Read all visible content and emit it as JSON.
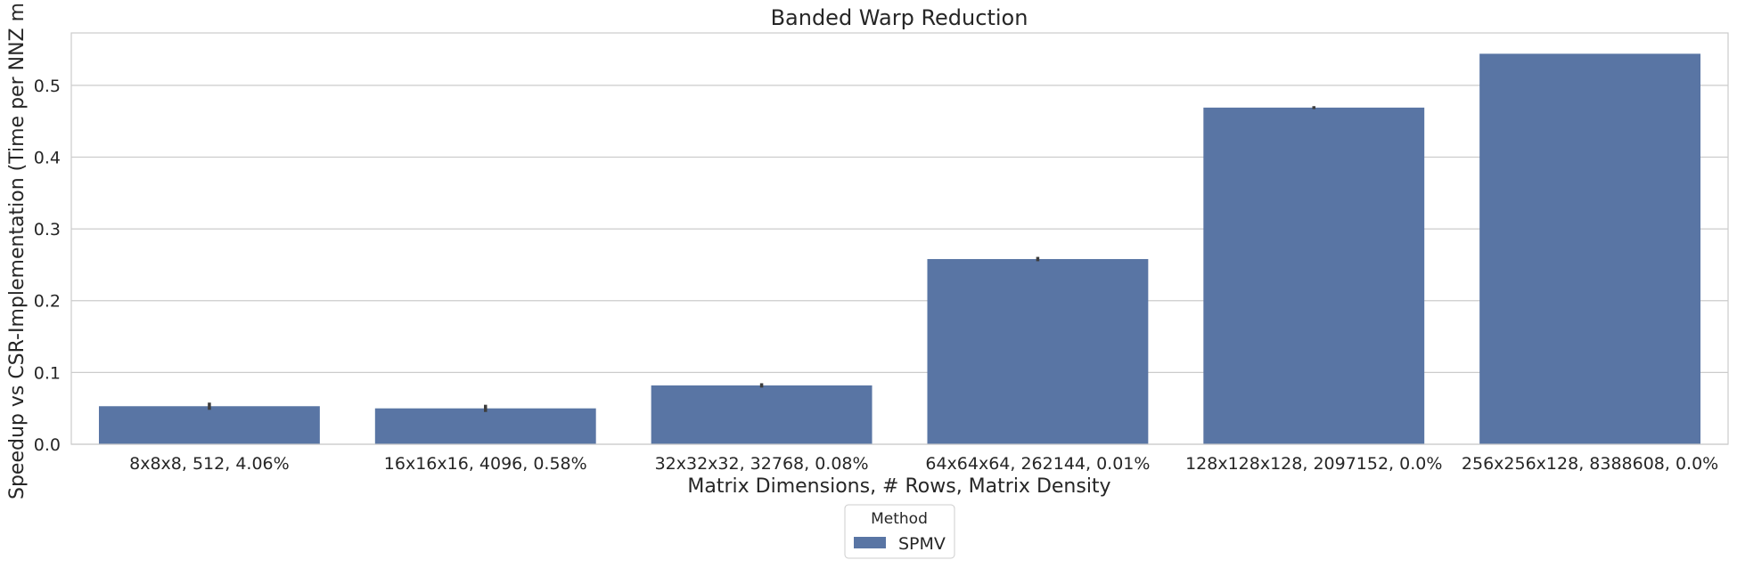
{
  "chart_data": {
    "type": "bar",
    "title": "Banded Warp Reduction",
    "xlabel": "Matrix Dimensions, # Rows, Matrix Density",
    "ylabel": "Speedup vs CSR-Implementation (Time per NNZ m",
    "categories": [
      "8x8x8, 512, 4.06%",
      "16x16x16, 4096, 0.58%",
      "32x32x32, 32768, 0.08%",
      "64x64x64, 262144, 0.01%",
      "128x128x128, 2097152, 0.0%",
      "256x256x128, 8388608, 0.0%"
    ],
    "series": [
      {
        "name": "SPMV",
        "color": "#5975a4",
        "values": [
          0.053,
          0.05,
          0.082,
          0.258,
          0.469,
          0.544
        ],
        "error": [
          0.005,
          0.005,
          0.003,
          0.003,
          0.002,
          0.0
        ]
      }
    ],
    "ylim": [
      0,
      0.573
    ],
    "yticks": [
      "0.0",
      "0.1",
      "0.2",
      "0.3",
      "0.4",
      "0.5"
    ],
    "ytick_values": [
      0.0,
      0.1,
      0.2,
      0.3,
      0.4,
      0.5
    ],
    "grid": true,
    "legend": {
      "title": "Method",
      "placement": "bottom-center"
    }
  }
}
